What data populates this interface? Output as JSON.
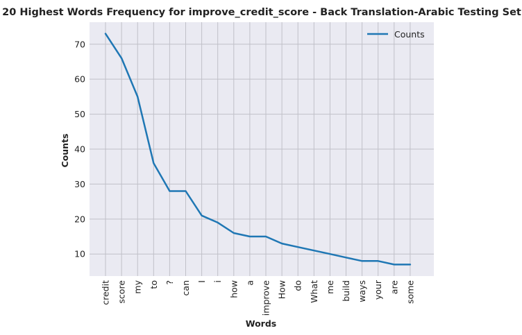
{
  "chart_data": {
    "type": "line",
    "title": "20 Highest Words Frequency for improve_credit_score - Back Translation-Arabic Testing Set",
    "xlabel": "Words",
    "ylabel": "Counts",
    "categories": [
      "credit",
      "score",
      "my",
      "to",
      "?",
      "can",
      "I",
      "i",
      "how",
      "a",
      "improve",
      "How",
      "do",
      "What",
      "me",
      "build",
      "ways",
      "your",
      "are",
      "some"
    ],
    "series": [
      {
        "name": "Counts",
        "values": [
          73,
          66,
          55,
          36,
          28,
          28,
          21,
          19,
          16,
          15,
          15,
          13,
          12,
          11,
          10,
          9,
          8,
          8,
          7,
          7
        ]
      }
    ],
    "ylim": [
      3.7,
      76.3
    ],
    "yticks": [
      10,
      20,
      30,
      40,
      50,
      60,
      70
    ],
    "grid": true,
    "legend_position": "top-right",
    "colors": {
      "line": "#1f77b4",
      "background": "#eaeaf2",
      "grid": "#c0c0c8"
    }
  }
}
